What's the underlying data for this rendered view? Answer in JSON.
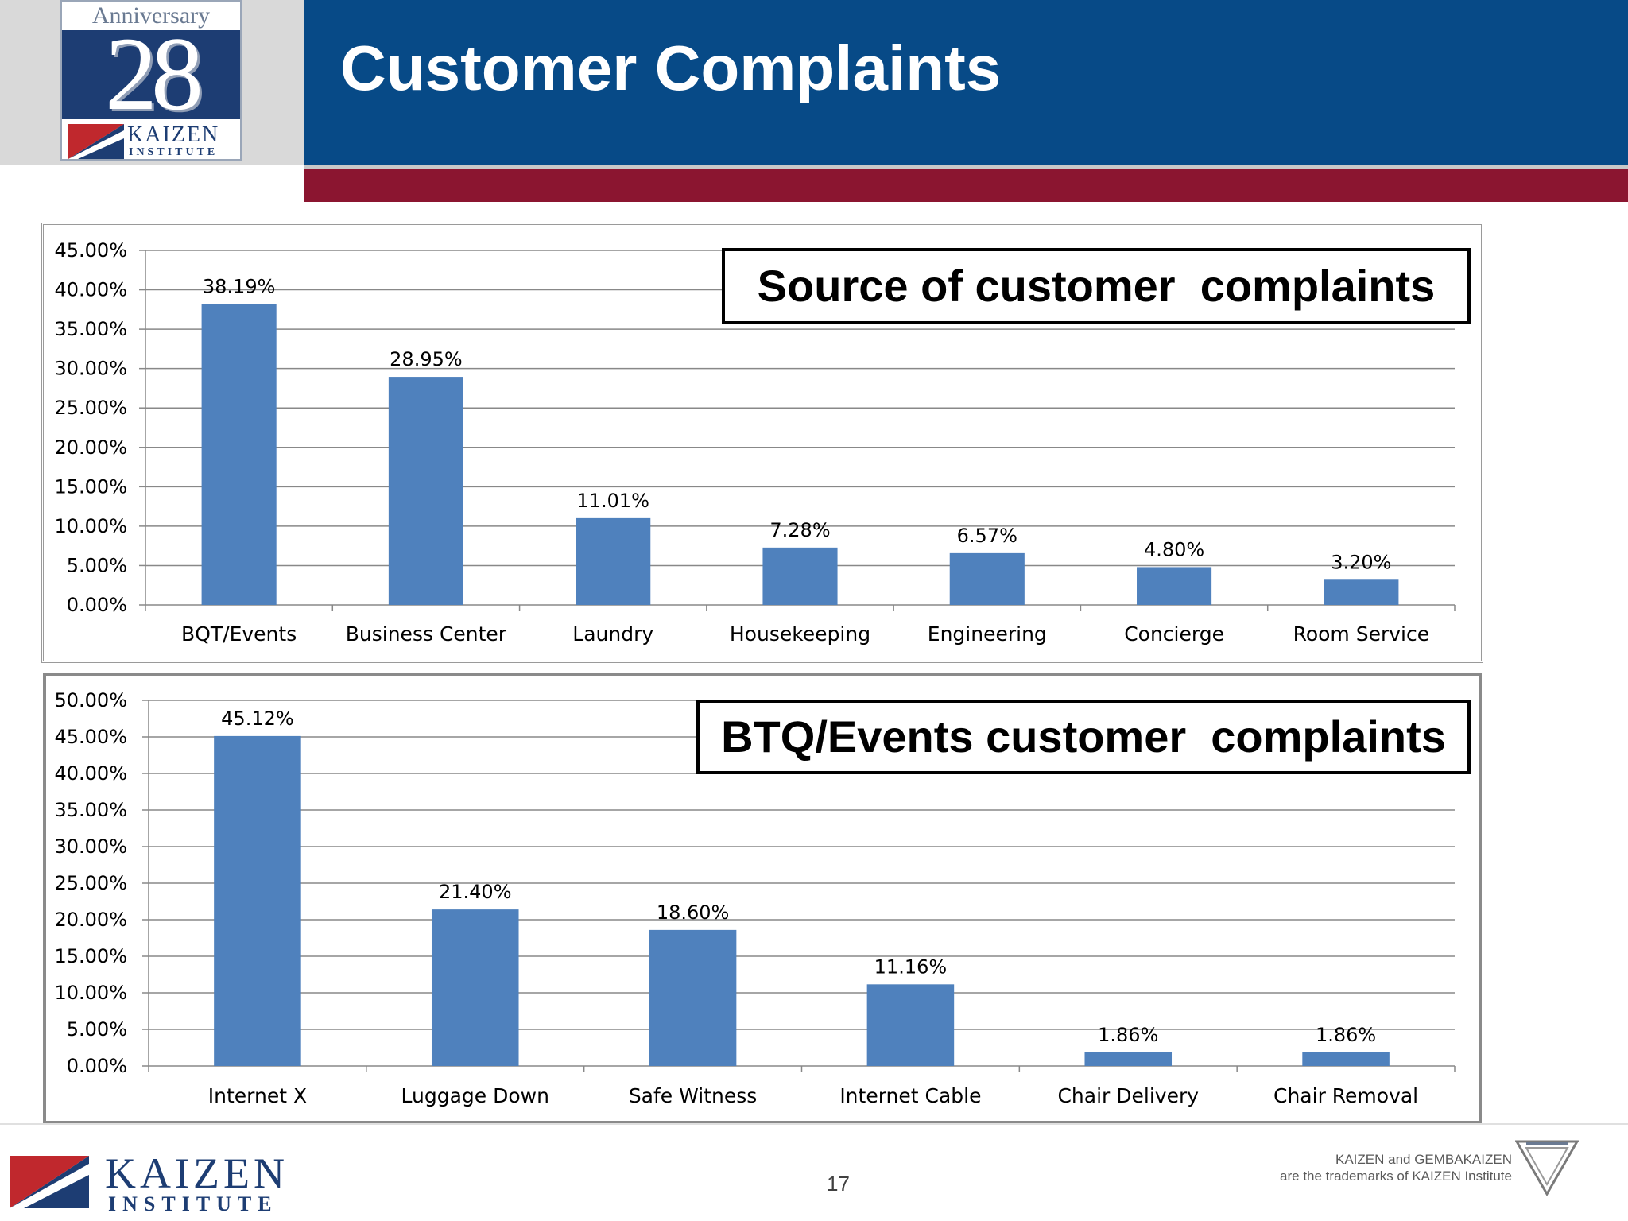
{
  "header": {
    "title": "Customer Complaints",
    "logo": {
      "top_text": "Anniversary",
      "number": "28",
      "brand": "KAIZEN",
      "subbrand": "INSTITUTE"
    }
  },
  "colors": {
    "header_blue": "#074a87",
    "header_red": "#8b1530",
    "bar_blue": "#4f81bd",
    "header_gray": "#d9d9d9"
  },
  "chart_data": [
    {
      "type": "bar",
      "title": "Source of customer  complaints",
      "categories": [
        "BQT/Events",
        "Business Center",
        "Laundry",
        "Housekeeping",
        "Engineering",
        "Concierge",
        "Room Service"
      ],
      "values": [
        38.19,
        28.95,
        11.01,
        7.28,
        6.57,
        4.8,
        3.2
      ],
      "data_labels": [
        "38.19%",
        "28.95%",
        "11.01%",
        "7.28%",
        "6.57%",
        "4.80%",
        "3.20%"
      ],
      "yticks": [
        "0.00%",
        "5.00%",
        "10.00%",
        "15.00%",
        "20.00%",
        "25.00%",
        "30.00%",
        "35.00%",
        "40.00%",
        "45.00%"
      ],
      "ylim": [
        0,
        45
      ],
      "grid": true
    },
    {
      "type": "bar",
      "title": "BTQ/Events customer  complaints",
      "categories": [
        "Internet X",
        "Luggage Down",
        "Safe Witness",
        "Internet Cable",
        "Chair Delivery",
        "Chair Removal"
      ],
      "values": [
        45.12,
        21.4,
        18.6,
        11.16,
        1.86,
        1.86
      ],
      "data_labels": [
        "45.12%",
        "21.40%",
        "18.60%",
        "11.16%",
        "1.86%",
        "1.86%"
      ],
      "yticks": [
        "0.00%",
        "5.00%",
        "10.00%",
        "15.00%",
        "20.00%",
        "25.00%",
        "30.00%",
        "35.00%",
        "40.00%",
        "45.00%",
        "50.00%"
      ],
      "ylim": [
        0,
        50
      ],
      "grid": true
    }
  ],
  "footer": {
    "brand": "KAIZEN",
    "subbrand": "INSTITUTE",
    "page_number": "17",
    "trademark_line1": "KAIZEN and GEMBAKAIZEN",
    "trademark_line2": "are the trademarks of KAIZEN Institute"
  }
}
